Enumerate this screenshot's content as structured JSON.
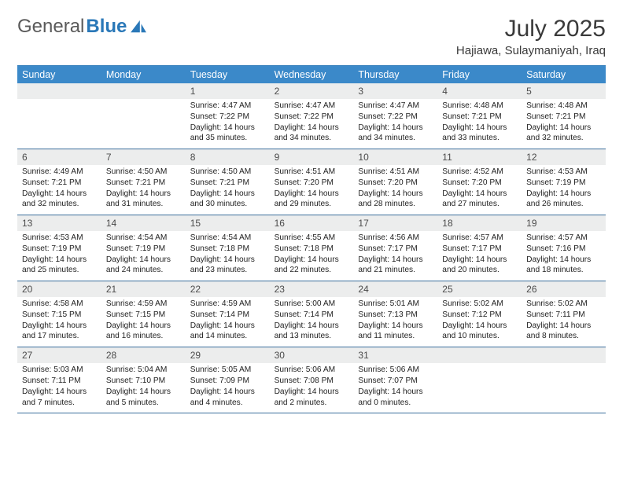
{
  "logo": {
    "text1": "General",
    "text2": "Blue"
  },
  "title": "July 2025",
  "location": "Hajiawa, Sulaymaniyah, Iraq",
  "colors": {
    "header_bg": "#3b89c9",
    "header_text": "#ffffff",
    "daynum_bg": "#eceded",
    "week_border": "#3b6e9c",
    "logo_gray": "#5a5a5a",
    "logo_blue": "#2a78b8",
    "text": "#222222"
  },
  "day_headers": [
    "Sunday",
    "Monday",
    "Tuesday",
    "Wednesday",
    "Thursday",
    "Friday",
    "Saturday"
  ],
  "weeks": [
    [
      {
        "n": "",
        "sunrise": "",
        "sunset": "",
        "daylight": ""
      },
      {
        "n": "",
        "sunrise": "",
        "sunset": "",
        "daylight": ""
      },
      {
        "n": "1",
        "sunrise": "Sunrise: 4:47 AM",
        "sunset": "Sunset: 7:22 PM",
        "daylight": "Daylight: 14 hours and 35 minutes."
      },
      {
        "n": "2",
        "sunrise": "Sunrise: 4:47 AM",
        "sunset": "Sunset: 7:22 PM",
        "daylight": "Daylight: 14 hours and 34 minutes."
      },
      {
        "n": "3",
        "sunrise": "Sunrise: 4:47 AM",
        "sunset": "Sunset: 7:22 PM",
        "daylight": "Daylight: 14 hours and 34 minutes."
      },
      {
        "n": "4",
        "sunrise": "Sunrise: 4:48 AM",
        "sunset": "Sunset: 7:21 PM",
        "daylight": "Daylight: 14 hours and 33 minutes."
      },
      {
        "n": "5",
        "sunrise": "Sunrise: 4:48 AM",
        "sunset": "Sunset: 7:21 PM",
        "daylight": "Daylight: 14 hours and 32 minutes."
      }
    ],
    [
      {
        "n": "6",
        "sunrise": "Sunrise: 4:49 AM",
        "sunset": "Sunset: 7:21 PM",
        "daylight": "Daylight: 14 hours and 32 minutes."
      },
      {
        "n": "7",
        "sunrise": "Sunrise: 4:50 AM",
        "sunset": "Sunset: 7:21 PM",
        "daylight": "Daylight: 14 hours and 31 minutes."
      },
      {
        "n": "8",
        "sunrise": "Sunrise: 4:50 AM",
        "sunset": "Sunset: 7:21 PM",
        "daylight": "Daylight: 14 hours and 30 minutes."
      },
      {
        "n": "9",
        "sunrise": "Sunrise: 4:51 AM",
        "sunset": "Sunset: 7:20 PM",
        "daylight": "Daylight: 14 hours and 29 minutes."
      },
      {
        "n": "10",
        "sunrise": "Sunrise: 4:51 AM",
        "sunset": "Sunset: 7:20 PM",
        "daylight": "Daylight: 14 hours and 28 minutes."
      },
      {
        "n": "11",
        "sunrise": "Sunrise: 4:52 AM",
        "sunset": "Sunset: 7:20 PM",
        "daylight": "Daylight: 14 hours and 27 minutes."
      },
      {
        "n": "12",
        "sunrise": "Sunrise: 4:53 AM",
        "sunset": "Sunset: 7:19 PM",
        "daylight": "Daylight: 14 hours and 26 minutes."
      }
    ],
    [
      {
        "n": "13",
        "sunrise": "Sunrise: 4:53 AM",
        "sunset": "Sunset: 7:19 PM",
        "daylight": "Daylight: 14 hours and 25 minutes."
      },
      {
        "n": "14",
        "sunrise": "Sunrise: 4:54 AM",
        "sunset": "Sunset: 7:19 PM",
        "daylight": "Daylight: 14 hours and 24 minutes."
      },
      {
        "n": "15",
        "sunrise": "Sunrise: 4:54 AM",
        "sunset": "Sunset: 7:18 PM",
        "daylight": "Daylight: 14 hours and 23 minutes."
      },
      {
        "n": "16",
        "sunrise": "Sunrise: 4:55 AM",
        "sunset": "Sunset: 7:18 PM",
        "daylight": "Daylight: 14 hours and 22 minutes."
      },
      {
        "n": "17",
        "sunrise": "Sunrise: 4:56 AM",
        "sunset": "Sunset: 7:17 PM",
        "daylight": "Daylight: 14 hours and 21 minutes."
      },
      {
        "n": "18",
        "sunrise": "Sunrise: 4:57 AM",
        "sunset": "Sunset: 7:17 PM",
        "daylight": "Daylight: 14 hours and 20 minutes."
      },
      {
        "n": "19",
        "sunrise": "Sunrise: 4:57 AM",
        "sunset": "Sunset: 7:16 PM",
        "daylight": "Daylight: 14 hours and 18 minutes."
      }
    ],
    [
      {
        "n": "20",
        "sunrise": "Sunrise: 4:58 AM",
        "sunset": "Sunset: 7:15 PM",
        "daylight": "Daylight: 14 hours and 17 minutes."
      },
      {
        "n": "21",
        "sunrise": "Sunrise: 4:59 AM",
        "sunset": "Sunset: 7:15 PM",
        "daylight": "Daylight: 14 hours and 16 minutes."
      },
      {
        "n": "22",
        "sunrise": "Sunrise: 4:59 AM",
        "sunset": "Sunset: 7:14 PM",
        "daylight": "Daylight: 14 hours and 14 minutes."
      },
      {
        "n": "23",
        "sunrise": "Sunrise: 5:00 AM",
        "sunset": "Sunset: 7:14 PM",
        "daylight": "Daylight: 14 hours and 13 minutes."
      },
      {
        "n": "24",
        "sunrise": "Sunrise: 5:01 AM",
        "sunset": "Sunset: 7:13 PM",
        "daylight": "Daylight: 14 hours and 11 minutes."
      },
      {
        "n": "25",
        "sunrise": "Sunrise: 5:02 AM",
        "sunset": "Sunset: 7:12 PM",
        "daylight": "Daylight: 14 hours and 10 minutes."
      },
      {
        "n": "26",
        "sunrise": "Sunrise: 5:02 AM",
        "sunset": "Sunset: 7:11 PM",
        "daylight": "Daylight: 14 hours and 8 minutes."
      }
    ],
    [
      {
        "n": "27",
        "sunrise": "Sunrise: 5:03 AM",
        "sunset": "Sunset: 7:11 PM",
        "daylight": "Daylight: 14 hours and 7 minutes."
      },
      {
        "n": "28",
        "sunrise": "Sunrise: 5:04 AM",
        "sunset": "Sunset: 7:10 PM",
        "daylight": "Daylight: 14 hours and 5 minutes."
      },
      {
        "n": "29",
        "sunrise": "Sunrise: 5:05 AM",
        "sunset": "Sunset: 7:09 PM",
        "daylight": "Daylight: 14 hours and 4 minutes."
      },
      {
        "n": "30",
        "sunrise": "Sunrise: 5:06 AM",
        "sunset": "Sunset: 7:08 PM",
        "daylight": "Daylight: 14 hours and 2 minutes."
      },
      {
        "n": "31",
        "sunrise": "Sunrise: 5:06 AM",
        "sunset": "Sunset: 7:07 PM",
        "daylight": "Daylight: 14 hours and 0 minutes."
      },
      {
        "n": "",
        "sunrise": "",
        "sunset": "",
        "daylight": ""
      },
      {
        "n": "",
        "sunrise": "",
        "sunset": "",
        "daylight": ""
      }
    ]
  ]
}
